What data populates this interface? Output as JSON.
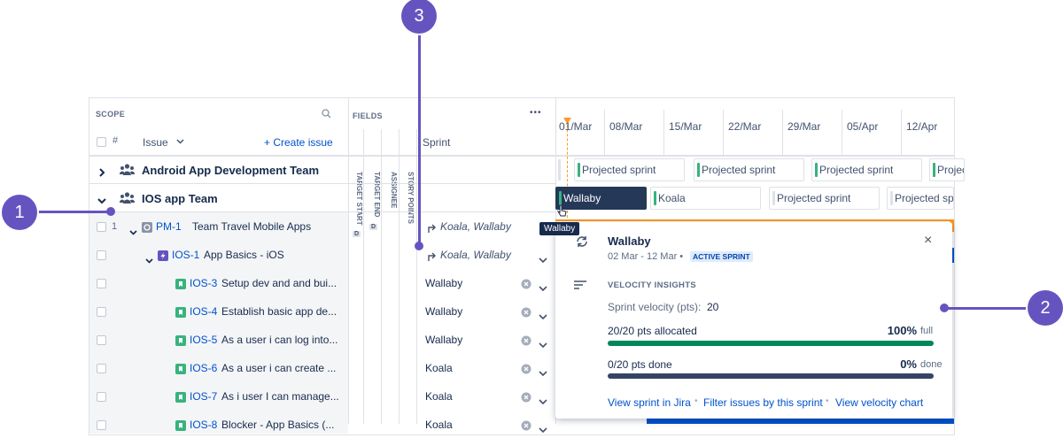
{
  "callouts": [
    "1",
    "2",
    "3"
  ],
  "scope": {
    "header": "SCOPE",
    "hash": "#",
    "issue": "Issue",
    "create": "+ Create issue"
  },
  "fields": {
    "header": "FIELDS",
    "sprint": "Sprint",
    "columns": [
      "TARGET START",
      "TARGET END",
      "ASSIGNEE",
      "STORY POINTS"
    ]
  },
  "timeline": {
    "dates": [
      "01/Mar",
      "08/Mar",
      "15/Mar",
      "22/Mar",
      "29/Mar",
      "05/Apr",
      "12/Apr"
    ]
  },
  "teams": [
    {
      "name": "Android App Development Team",
      "sprints": [
        "Projected sprint",
        "Projected sprint",
        "Projected sprint",
        "Projected sprint"
      ]
    },
    {
      "name": "IOS app Team",
      "sprints": [
        "Wallaby",
        "Koala",
        "Projected sprint",
        "Projected sprint"
      ]
    }
  ],
  "issues": [
    {
      "num": "1",
      "key": "PM-1",
      "summary": "Team Travel Mobile Apps",
      "sprint": "Koala, Wallaby",
      "badges": [
        "D",
        "D"
      ]
    },
    {
      "key": "IOS-1",
      "summary": "App Basics - iOS",
      "sprint": "Koala, Wallaby"
    },
    {
      "key": "IOS-3",
      "summary": "Setup dev and and bui...",
      "sprint": "Wallaby"
    },
    {
      "key": "IOS-4",
      "summary": "Establish basic app de...",
      "sprint": "Wallaby"
    },
    {
      "key": "IOS-5",
      "summary": "As a user i can log into...",
      "sprint": "Wallaby"
    },
    {
      "key": "IOS-6",
      "summary": "As a user i can create ...",
      "sprint": "Koala"
    },
    {
      "key": "IOS-7",
      "summary": "As i user I can manage...",
      "sprint": "Koala"
    },
    {
      "key": "IOS-8",
      "summary": "Blocker - App Basics (...",
      "sprint": "Koala"
    }
  ],
  "tooltip": "Wallaby",
  "popup": {
    "title": "Wallaby",
    "dates": "02 Mar - 12 Mar •",
    "status": "ACTIVE SPRINT",
    "section": "VELOCITY INSIGHTS",
    "velocity_label": "Sprint velocity (pts):",
    "velocity": "20",
    "allocated": {
      "label": "20/20 pts allocated",
      "percent": "100%",
      "suffix": "full"
    },
    "done": {
      "label": "0/20 pts done",
      "percent": "0%",
      "suffix": "done"
    },
    "links": [
      "View sprint in Jira",
      "Filter issues by this sprint",
      "View velocity chart"
    ]
  }
}
